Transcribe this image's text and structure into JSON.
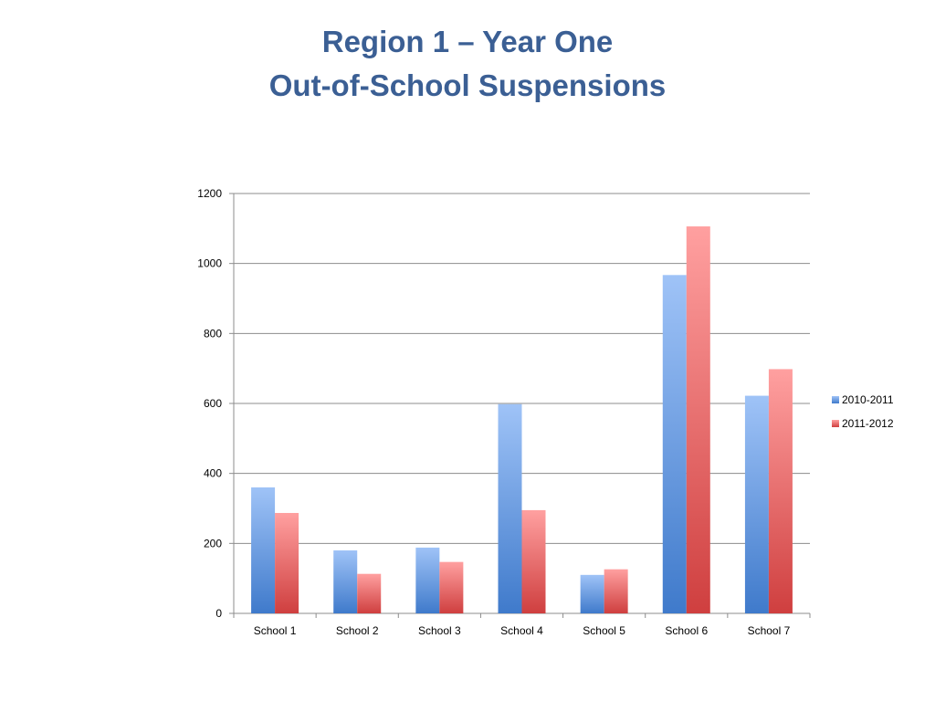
{
  "slide": {
    "title_line1": "Region 1 – Year One",
    "title_line2": "Out-of-School Suspensions"
  },
  "chart_data": {
    "type": "bar",
    "title": "",
    "xlabel": "",
    "ylabel": "",
    "categories": [
      "School 1",
      "School 2",
      "School 3",
      "School 4",
      "School 5",
      "School 6",
      "School 7"
    ],
    "series": [
      {
        "name": "2010-2011",
        "values": [
          360,
          180,
          188,
          598,
          110,
          967,
          622
        ],
        "color_light": "#9fc3f7",
        "color_dark": "#3f7acb"
      },
      {
        "name": "2011-2012",
        "values": [
          287,
          113,
          147,
          295,
          126,
          1106,
          698
        ],
        "color_light": "#ffa0a0",
        "color_dark": "#cf3f3f"
      }
    ],
    "ylim": [
      0,
      1200
    ],
    "yticks": [
      0,
      200,
      400,
      600,
      800,
      1000,
      1200
    ],
    "grid": true,
    "legend_position": "right"
  }
}
